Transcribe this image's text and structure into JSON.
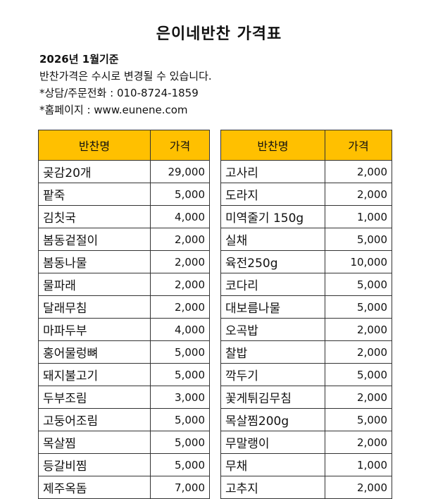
{
  "title": "은이네반찬 가격표",
  "info": {
    "subtitle": "2026년 1월기준",
    "line1": "반찬가격은 수시로 변경될 수 있습니다.",
    "line2": "*상담/주문전화 : 010-8724-1859",
    "line3": "*홈페이지 : www.eunene.com"
  },
  "table_headers": {
    "name": "반찬명",
    "price": "가격"
  },
  "colors": {
    "header_bg": "#ffc000",
    "border": "#333333"
  },
  "left_table": [
    {
      "name": "곶감20개",
      "price": "29,000"
    },
    {
      "name": "팥죽",
      "price": "5,000"
    },
    {
      "name": "김칫국",
      "price": "4,000"
    },
    {
      "name": "봄동겉절이",
      "price": "2,000"
    },
    {
      "name": "봄동나물",
      "price": "2,000"
    },
    {
      "name": "물파래",
      "price": "2,000"
    },
    {
      "name": "달래무침",
      "price": "2,000"
    },
    {
      "name": "마파두부",
      "price": "4,000"
    },
    {
      "name": "홍어물렁뼈",
      "price": "5,000"
    },
    {
      "name": "돼지불고기",
      "price": "5,000"
    },
    {
      "name": "두부조림",
      "price": "3,000"
    },
    {
      "name": "고둥어조림",
      "price": "5,000"
    },
    {
      "name": "목살찜",
      "price": "5,000"
    },
    {
      "name": "등갈비찜",
      "price": "5,000"
    },
    {
      "name": "제주옥돔",
      "price": "7,000"
    }
  ],
  "right_table": [
    {
      "name": "고사리",
      "price": "2,000"
    },
    {
      "name": "도라지",
      "price": "2,000"
    },
    {
      "name": "미역줄기 150g",
      "price": "1,000"
    },
    {
      "name": "실채",
      "price": "5,000"
    },
    {
      "name": "육전250g",
      "price": "10,000"
    },
    {
      "name": "코다리",
      "price": "5,000"
    },
    {
      "name": "대보름나물",
      "price": "5,000"
    },
    {
      "name": "오곡밥",
      "price": "2,000"
    },
    {
      "name": "찰밥",
      "price": "2,000"
    },
    {
      "name": "깍두기",
      "price": "5,000"
    },
    {
      "name": "꽃게튀김무침",
      "price": "2,000"
    },
    {
      "name": "목살찜200g",
      "price": "5,000"
    },
    {
      "name": "무말랭이",
      "price": "2,000"
    },
    {
      "name": "무채",
      "price": "1,000"
    },
    {
      "name": "고추지",
      "price": "2,000"
    }
  ]
}
